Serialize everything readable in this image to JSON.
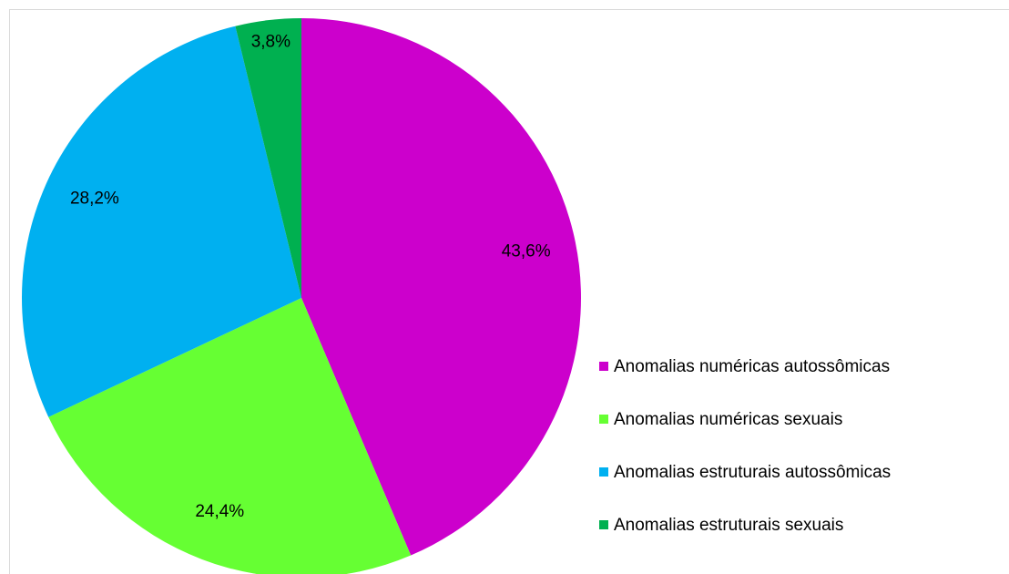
{
  "chart_data": {
    "type": "pie",
    "categories": [
      "Anomalias numéricas autossômicas",
      "Anomalias numéricas sexuais",
      "Anomalias estruturais autossômicas",
      "Anomalias estruturais sexuais"
    ],
    "values": [
      43.6,
      24.4,
      28.2,
      3.8
    ],
    "value_labels": [
      "43,6%",
      "24,4%",
      "28,2%",
      "3,8%"
    ],
    "colors": [
      "#cc00cc",
      "#66ff33",
      "#00b0f0",
      "#00b050"
    ],
    "legend": "right"
  }
}
